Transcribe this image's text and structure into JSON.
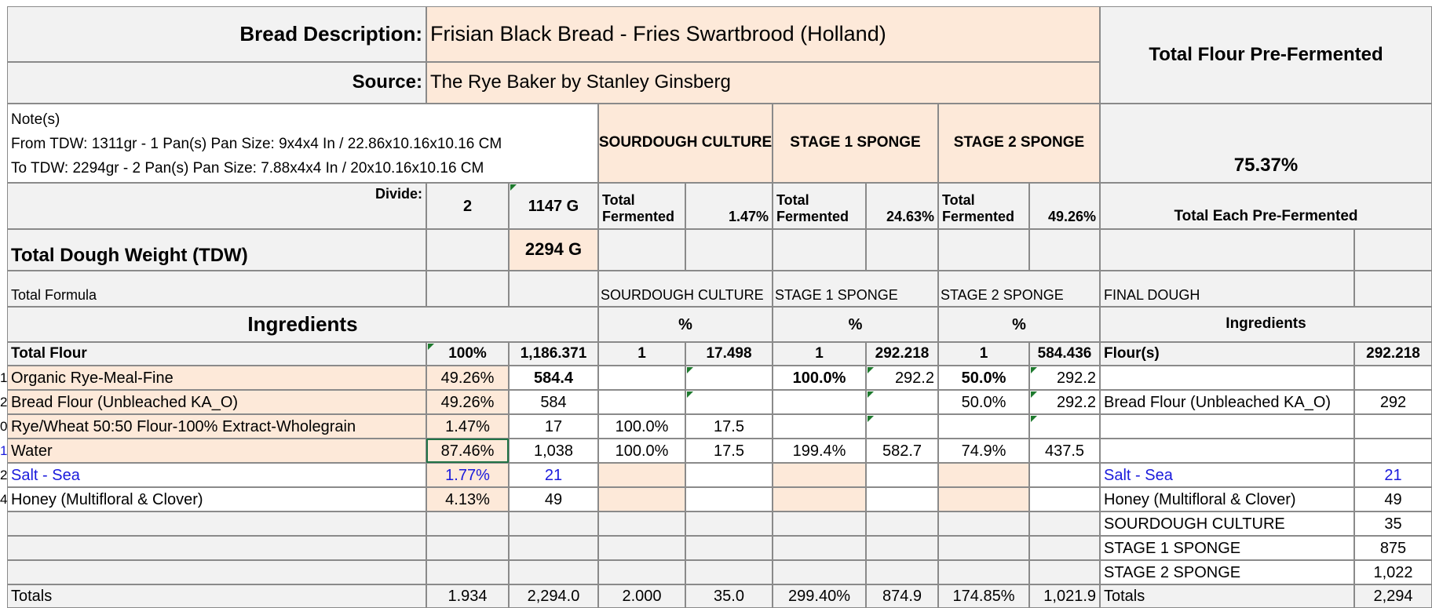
{
  "header": {
    "bread_description_label": "Bread Description:",
    "bread_description_value": "Frisian Black Bread -  Fries Swartbrood (Holland)",
    "source_label": "Source:",
    "source_value": "The Rye Baker by Stanley Ginsberg",
    "total_flour_prefermented_label": "Total Flour Pre-Fermented",
    "total_flour_prefermented_value": "75.37%"
  },
  "notes": {
    "title": "Note(s)",
    "line1": "From  TDW: 1311gr - 1 Pan(s)   Pan Size: 9x4x4 In / 22.86x10.16x10.16 CM",
    "line2": "To  TDW: 2294gr - 2 Pan(s)   Pan Size: 7.88x4x4 In / 20x10.16x10.16 CM"
  },
  "stages": {
    "sourdough_culture": "SOURDOUGH CULTURE",
    "stage1_sponge": "STAGE 1 SPONGE",
    "stage2_sponge": "STAGE 2 SPONGE",
    "final_dough": "FINAL DOUGH"
  },
  "divide": {
    "label": "Divide:",
    "count": "2",
    "weight": "1147 G",
    "total_fermented_line1": "Total",
    "total_fermented_line2": "Fermented",
    "sourdough_pct": "1.47%",
    "stage1_pct": "24.63%",
    "stage2_pct": "49.26%",
    "total_each_label": "Total Each Pre-Fermented"
  },
  "tdw": {
    "label": "Total Dough Weight (TDW)",
    "value": "2294 G"
  },
  "total_formula_label": "Total Formula",
  "ingredients_header": {
    "title": "Ingredients",
    "pct_symbol": "%",
    "final_title": "Ingredients"
  },
  "total_flour_row": {
    "label": "Total Flour",
    "pct": "100%",
    "weight": "1,186.371",
    "sc_ratio": "1",
    "sc_weight": "17.498",
    "s1_ratio": "1",
    "s1_weight": "292.218",
    "s2_ratio": "1",
    "s2_weight": "584.436",
    "final_label": "Flour(s)",
    "final_weight": "292.218"
  },
  "ingredient_rows": [
    {
      "id": "1",
      "name": "Organic Rye-Meal-Fine",
      "pct": "49.26%",
      "weight": "584.4",
      "sc_pct": "",
      "sc_w": "",
      "s1_pct": "100.0%",
      "s1_w": "292.2",
      "s2_pct": "50.0%",
      "s2_w": "292.2",
      "final_name": "",
      "final_w": ""
    },
    {
      "id": "2",
      "name": "Bread Flour (Unbleached KA_O)",
      "pct": "49.26%",
      "weight": "584",
      "sc_pct": "",
      "sc_w": "",
      "s1_pct": "",
      "s1_w": "",
      "s2_pct": "50.0%",
      "s2_w": "292.2",
      "final_name": "Bread Flour (Unbleached KA_O)",
      "final_w": "292"
    },
    {
      "id": "0",
      "name": "Rye/Wheat 50:50 Flour-100% Extract-Wholegrain",
      "pct": "1.47%",
      "weight": "17",
      "sc_pct": "100.0%",
      "sc_w": "17.5",
      "s1_pct": "",
      "s1_w": "",
      "s2_pct": "",
      "s2_w": "",
      "final_name": "",
      "final_w": ""
    },
    {
      "id": "1",
      "name": "Water",
      "pct": "87.46%",
      "weight": "1,038",
      "sc_pct": "100.0%",
      "sc_w": "17.5",
      "s1_pct": "199.4%",
      "s1_w": "582.7",
      "s2_pct": "74.9%",
      "s2_w": "437.5",
      "final_name": "",
      "final_w": ""
    },
    {
      "id": "2",
      "name": "Salt - Sea",
      "pct": "1.77%",
      "weight": "21",
      "sc_pct": "",
      "sc_w": "",
      "s1_pct": "",
      "s1_w": "",
      "s2_pct": "",
      "s2_w": "",
      "final_name": "Salt - Sea",
      "final_w": "21"
    },
    {
      "id": "4",
      "name": "Honey (Multifloral & Clover)",
      "pct": "4.13%",
      "weight": "49",
      "sc_pct": "",
      "sc_w": "",
      "s1_pct": "",
      "s1_w": "",
      "s2_pct": "",
      "s2_w": "",
      "final_name": "Honey (Multifloral & Clover)",
      "final_w": "49"
    }
  ],
  "final_extra_rows": [
    {
      "name": "SOURDOUGH CULTURE",
      "weight": "35"
    },
    {
      "name": "STAGE 1 SPONGE",
      "weight": "875"
    },
    {
      "name": "STAGE 2 SPONGE",
      "weight": "1,022"
    }
  ],
  "totals_row": {
    "label": "Totals",
    "pct": "1.934",
    "weight": "2,294.0",
    "sc_pct": "2.000",
    "sc_w": "35.0",
    "s1_pct": "299.40%",
    "s1_w": "874.9",
    "s2_pct": "174.85%",
    "s2_w": "1,021.9",
    "final_label": "Totals",
    "final_w": "2,294"
  },
  "colors": {
    "header_fill": "#f2f2f2",
    "highlight_fill": "#fde9d9",
    "grid_line": "#8a8a8a",
    "salt_text": "#1a1adc",
    "cell_marker": "#1e7a2e"
  }
}
